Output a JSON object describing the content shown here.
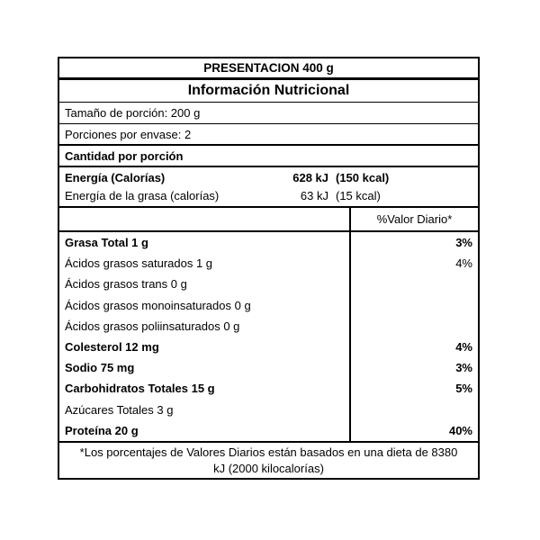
{
  "label": {
    "presentation": "PRESENTACION 400 g",
    "title": "Información Nutricional",
    "serving_size": "Tamaño de porción: 200 g",
    "servings_per_container": "Porciones por envase: 2",
    "amount_per_serving": "Cantidad por porción",
    "energy": {
      "name": "Energía (Calorías)",
      "kj": "628 kJ",
      "kcal": "(150 kcal)"
    },
    "energy_fat": {
      "name": "Energía de la grasa (calorías)",
      "kj": "63 kJ",
      "kcal": "(15 kcal)"
    },
    "daily_value_header": "%Valor Diario*",
    "nutrients": [
      {
        "name": "Grasa Total 1 g",
        "bold": true,
        "dv": "3%"
      },
      {
        "name": "Ácidos grasos saturados 1 g",
        "bold": false,
        "dv": "4%"
      },
      {
        "name": "Ácidos grasos trans 0 g",
        "bold": false,
        "dv": ""
      },
      {
        "name": "Ácidos grasos monoinsaturados 0 g",
        "bold": false,
        "dv": ""
      },
      {
        "name": "Ácidos grasos poliinsaturados 0 g",
        "bold": false,
        "dv": ""
      },
      {
        "name": "Colesterol 12 mg",
        "bold": true,
        "dv": "4%"
      },
      {
        "name": "Sodio 75 mg",
        "bold": true,
        "dv": "3%"
      },
      {
        "name": "Carbohidratos Totales 15 g",
        "bold": true,
        "dv": "5%"
      },
      {
        "name": "Azúcares Totales 3 g",
        "bold": false,
        "dv": ""
      },
      {
        "name": "Proteína 20 g",
        "bold": true,
        "dv": "40%"
      }
    ],
    "footnote_line1": "*Los porcentajes de Valores Diarios están basados en una dieta de 8380",
    "footnote_line2": "kJ (2000 kilocalorías)",
    "colors": {
      "text": "#000000",
      "border": "#000000",
      "background": "#ffffff"
    }
  }
}
